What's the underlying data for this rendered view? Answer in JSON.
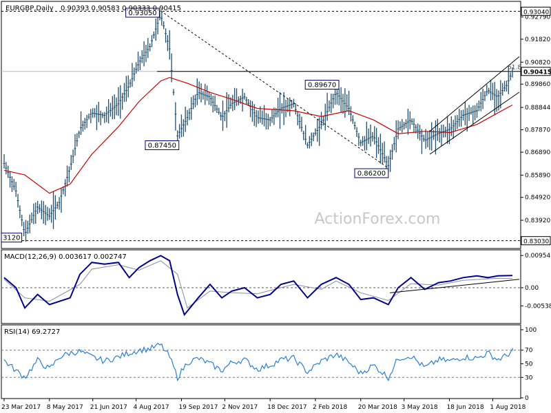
{
  "chart_data": {
    "type": "candlestick",
    "colors": {
      "candle": "#1f4e6e",
      "ma": "#cc0000",
      "macd": "#00008b",
      "signal": "#8888aa",
      "rsi": "#2a7fcf",
      "axis_text": "#000000",
      "badge_fill": "#ffffff",
      "badge_border": "#000066"
    },
    "price": {
      "header": {
        "symbol": "EURGBP,Daily",
        "ohlc": "0.90393 0.90583 0.90333 0.90415"
      },
      "ylim": [
        0.8281,
        0.9335
      ],
      "y_ticks": [
        "0.92790",
        "0.91820",
        "0.90820",
        "0.89860",
        "0.88844",
        "0.87870",
        "0.86890",
        "0.85890",
        "0.84920",
        "0.83920"
      ],
      "last_price_label": "0.90415",
      "last_price": 0.90415,
      "fib_text": "61.8",
      "watermark": "ActionForex.com",
      "levels": [
        {
          "price": 0.9304,
          "label": "0.93040"
        },
        {
          "price": 0.8303,
          "label": "0.83030"
        }
      ],
      "annotations": [
        {
          "text": "0.93050",
          "date": "2017-08-29",
          "price": 0.9305
        },
        {
          "text": "0.87450",
          "date": "2017-09-15",
          "price": 0.8745
        },
        {
          "text": "0.89670",
          "date": "2018-02-23",
          "price": 0.8967
        },
        {
          "text": "0.86200",
          "date": "2018-04-17",
          "price": 0.862
        },
        {
          "text": "3120",
          "date": "2017-03-23",
          "price": 0.8312
        }
      ],
      "support_line": {
        "from": [
          "2017-08-29",
          0.9305
        ],
        "to": [
          "2018-04-17",
          0.862
        ]
      },
      "channel_upper": {
        "from": [
          "2018-05-29",
          0.878
        ],
        "to": [
          "2018-08-21",
          0.9085
        ]
      },
      "channel_lower": {
        "from": [
          "2018-05-29",
          0.868
        ],
        "to": [
          "2018-08-21",
          0.893
        ]
      },
      "close_path": [
        [
          "2017-03-23",
          0.864
        ],
        [
          "2017-04-04",
          0.852
        ],
        [
          "2017-04-13",
          0.833
        ],
        [
          "2017-04-26",
          0.845
        ],
        [
          "2017-05-08",
          0.841
        ],
        [
          "2017-05-18",
          0.847
        ],
        [
          "2017-05-29",
          0.862
        ],
        [
          "2017-06-08",
          0.879
        ],
        [
          "2017-06-20",
          0.886
        ],
        [
          "2017-07-03",
          0.885
        ],
        [
          "2017-07-17",
          0.89
        ],
        [
          "2017-07-28",
          0.898
        ],
        [
          "2017-08-07",
          0.908
        ],
        [
          "2017-08-18",
          0.915
        ],
        [
          "2017-08-29",
          0.929
        ],
        [
          "2017-09-07",
          0.914
        ],
        [
          "2017-09-15",
          0.876
        ],
        [
          "2017-09-25",
          0.884
        ],
        [
          "2017-10-06",
          0.895
        ],
        [
          "2017-10-18",
          0.893
        ],
        [
          "2017-10-30",
          0.884
        ],
        [
          "2017-11-09",
          0.89
        ],
        [
          "2017-11-22",
          0.893
        ],
        [
          "2017-12-05",
          0.884
        ],
        [
          "2017-12-18",
          0.883
        ],
        [
          "2017-12-29",
          0.888
        ],
        [
          "2018-01-11",
          0.89
        ],
        [
          "2018-01-25",
          0.872
        ],
        [
          "2018-02-08",
          0.881
        ],
        [
          "2018-02-23",
          0.895
        ],
        [
          "2018-03-08",
          0.888
        ],
        [
          "2018-03-20",
          0.873
        ],
        [
          "2018-04-02",
          0.876
        ],
        [
          "2018-04-17",
          0.863
        ],
        [
          "2018-04-27",
          0.879
        ],
        [
          "2018-05-10",
          0.883
        ],
        [
          "2018-05-24",
          0.874
        ],
        [
          "2018-06-07",
          0.877
        ],
        [
          "2018-06-19",
          0.879
        ],
        [
          "2018-07-02",
          0.885
        ],
        [
          "2018-07-16",
          0.887
        ],
        [
          "2018-07-27",
          0.896
        ],
        [
          "2018-08-06",
          0.893
        ],
        [
          "2018-08-15",
          0.898
        ],
        [
          "2018-08-21",
          0.9042
        ]
      ],
      "ma_path": [
        [
          "2017-03-23",
          0.861
        ],
        [
          "2017-04-13",
          0.859
        ],
        [
          "2017-05-08",
          0.851
        ],
        [
          "2017-05-29",
          0.855
        ],
        [
          "2017-06-20",
          0.868
        ],
        [
          "2017-07-17",
          0.88
        ],
        [
          "2017-08-07",
          0.891
        ],
        [
          "2017-08-29",
          0.9
        ],
        [
          "2017-09-07",
          0.9015
        ],
        [
          "2017-09-25",
          0.899
        ],
        [
          "2017-10-18",
          0.895
        ],
        [
          "2017-11-09",
          0.892
        ],
        [
          "2017-12-05",
          0.888
        ],
        [
          "2018-01-11",
          0.887
        ],
        [
          "2018-02-08",
          0.8845
        ],
        [
          "2018-03-08",
          0.887
        ],
        [
          "2018-04-02",
          0.883
        ],
        [
          "2018-04-27",
          0.877
        ],
        [
          "2018-05-24",
          0.878
        ],
        [
          "2018-06-19",
          0.8775
        ],
        [
          "2018-07-16",
          0.881
        ],
        [
          "2018-08-06",
          0.886
        ],
        [
          "2018-08-21",
          0.8895
        ]
      ]
    },
    "macd": {
      "header": "MACD(12,26,9) 0.003617 0.002747",
      "ylim": [
        -0.0102,
        0.0106
      ],
      "y_ticks": [
        "0.00954",
        "0.00",
        "-0.00538"
      ],
      "zero_line": 0,
      "trend_line": {
        "from": [
          "2018-04-27",
          -0.0007
        ],
        "to": [
          "2018-08-21",
          0.0031
        ]
      },
      "macd_path": [
        [
          "2017-03-23",
          0.003
        ],
        [
          "2017-04-04",
          0.0
        ],
        [
          "2017-04-13",
          -0.006
        ],
        [
          "2017-04-26",
          -0.002
        ],
        [
          "2017-05-08",
          -0.005
        ],
        [
          "2017-05-29",
          -0.003
        ],
        [
          "2017-06-08",
          0.004
        ],
        [
          "2017-06-20",
          0.0075
        ],
        [
          "2017-07-03",
          0.007
        ],
        [
          "2017-07-17",
          0.0075
        ],
        [
          "2017-07-28",
          0.003
        ],
        [
          "2017-08-07",
          0.006
        ],
        [
          "2017-08-18",
          0.008
        ],
        [
          "2017-08-29",
          0.0095
        ],
        [
          "2017-09-07",
          0.008
        ],
        [
          "2017-09-15",
          -0.002
        ],
        [
          "2017-09-22",
          -0.008
        ],
        [
          "2017-10-06",
          -0.003
        ],
        [
          "2017-10-18",
          0.001
        ],
        [
          "2017-10-30",
          -0.003
        ],
        [
          "2017-11-09",
          -0.001
        ],
        [
          "2017-11-22",
          0.0
        ],
        [
          "2017-12-05",
          -0.003
        ],
        [
          "2017-12-18",
          -0.002
        ],
        [
          "2017-12-29",
          0.001
        ],
        [
          "2018-01-11",
          0.002
        ],
        [
          "2018-01-25",
          -0.003
        ],
        [
          "2018-02-08",
          0.001
        ],
        [
          "2018-02-23",
          0.003
        ],
        [
          "2018-03-08",
          0.001
        ],
        [
          "2018-03-20",
          -0.0035
        ],
        [
          "2018-04-02",
          -0.003
        ],
        [
          "2018-04-17",
          -0.005
        ],
        [
          "2018-04-27",
          0.0
        ],
        [
          "2018-05-10",
          0.003
        ],
        [
          "2018-05-24",
          -0.0005
        ],
        [
          "2018-06-07",
          0.0015
        ],
        [
          "2018-06-19",
          0.002
        ],
        [
          "2018-07-02",
          0.003
        ],
        [
          "2018-07-16",
          0.0035
        ],
        [
          "2018-07-27",
          0.003
        ],
        [
          "2018-08-06",
          0.0035
        ],
        [
          "2018-08-21",
          0.0036
        ]
      ],
      "signal_path": [
        [
          "2017-03-23",
          0.0025
        ],
        [
          "2017-04-13",
          -0.003
        ],
        [
          "2017-05-08",
          -0.004
        ],
        [
          "2017-06-08",
          0.001
        ],
        [
          "2017-06-20",
          0.0055
        ],
        [
          "2017-07-17",
          0.0068
        ],
        [
          "2017-08-07",
          0.0052
        ],
        [
          "2017-08-29",
          0.008
        ],
        [
          "2017-09-15",
          0.004
        ],
        [
          "2017-09-25",
          -0.006
        ],
        [
          "2017-10-18",
          -0.001
        ],
        [
          "2017-11-09",
          -0.0015
        ],
        [
          "2017-12-05",
          -0.0018
        ],
        [
          "2018-01-11",
          0.001
        ],
        [
          "2018-02-08",
          -0.0005
        ],
        [
          "2018-02-23",
          0.002
        ],
        [
          "2018-03-20",
          -0.0015
        ],
        [
          "2018-04-17",
          -0.0038
        ],
        [
          "2018-05-10",
          0.0012
        ],
        [
          "2018-06-07",
          0.0008
        ],
        [
          "2018-07-02",
          0.0022
        ],
        [
          "2018-08-06",
          0.0028
        ],
        [
          "2018-08-21",
          0.0027
        ]
      ]
    },
    "rsi": {
      "header": "RSI(14) 69.2727",
      "ylim": [
        0,
        100
      ],
      "y_ticks": [
        100,
        70,
        50,
        30,
        0
      ],
      "levels": [
        70,
        30
      ],
      "path": [
        [
          "2017-03-23",
          55
        ],
        [
          "2017-04-04",
          40
        ],
        [
          "2017-04-13",
          30
        ],
        [
          "2017-04-26",
          55
        ],
        [
          "2017-05-08",
          42
        ],
        [
          "2017-05-18",
          60
        ],
        [
          "2017-05-29",
          66
        ],
        [
          "2017-06-08",
          68
        ],
        [
          "2017-06-20",
          60
        ],
        [
          "2017-07-03",
          54
        ],
        [
          "2017-07-17",
          60
        ],
        [
          "2017-07-28",
          66
        ],
        [
          "2017-08-07",
          70
        ],
        [
          "2017-08-18",
          72
        ],
        [
          "2017-08-29",
          78
        ],
        [
          "2017-09-07",
          60
        ],
        [
          "2017-09-15",
          30
        ],
        [
          "2017-09-25",
          52
        ],
        [
          "2017-10-06",
          58
        ],
        [
          "2017-10-18",
          50
        ],
        [
          "2017-10-30",
          40
        ],
        [
          "2017-11-09",
          52
        ],
        [
          "2017-11-22",
          56
        ],
        [
          "2017-12-05",
          42
        ],
        [
          "2017-12-18",
          48
        ],
        [
          "2017-12-29",
          56
        ],
        [
          "2018-01-11",
          58
        ],
        [
          "2018-01-25",
          38
        ],
        [
          "2018-02-08",
          54
        ],
        [
          "2018-02-23",
          64
        ],
        [
          "2018-03-08",
          52
        ],
        [
          "2018-03-20",
          36
        ],
        [
          "2018-04-02",
          48
        ],
        [
          "2018-04-17",
          30
        ],
        [
          "2018-04-27",
          58
        ],
        [
          "2018-05-10",
          62
        ],
        [
          "2018-05-24",
          44
        ],
        [
          "2018-06-07",
          56
        ],
        [
          "2018-06-19",
          54
        ],
        [
          "2018-07-02",
          60
        ],
        [
          "2018-07-16",
          58
        ],
        [
          "2018-07-27",
          66
        ],
        [
          "2018-08-06",
          56
        ],
        [
          "2018-08-15",
          62
        ],
        [
          "2018-08-21",
          69.27
        ]
      ]
    },
    "x_ticks": [
      {
        "label": "23 Mar 2017",
        "date": "2017-03-23"
      },
      {
        "label": "8 May 2017",
        "date": "2017-05-08"
      },
      {
        "label": "21 Jun 2017",
        "date": "2017-06-21"
      },
      {
        "label": "4 Aug 2017",
        "date": "2017-08-04"
      },
      {
        "label": "19 Sep 2017",
        "date": "2017-09-19"
      },
      {
        "label": "2 Nov 2017",
        "date": "2017-11-02"
      },
      {
        "label": "18 Dec 2017",
        "date": "2017-12-18"
      },
      {
        "label": "2 Feb 2018",
        "date": "2018-02-02"
      },
      {
        "label": "20 Mar 2018",
        "date": "2018-03-20"
      },
      {
        "label": "3 May 2018",
        "date": "2018-05-03"
      },
      {
        "label": "18 Jun 2018",
        "date": "2018-06-18"
      },
      {
        "label": "1 Aug 2018",
        "date": "2018-08-01"
      }
    ]
  }
}
